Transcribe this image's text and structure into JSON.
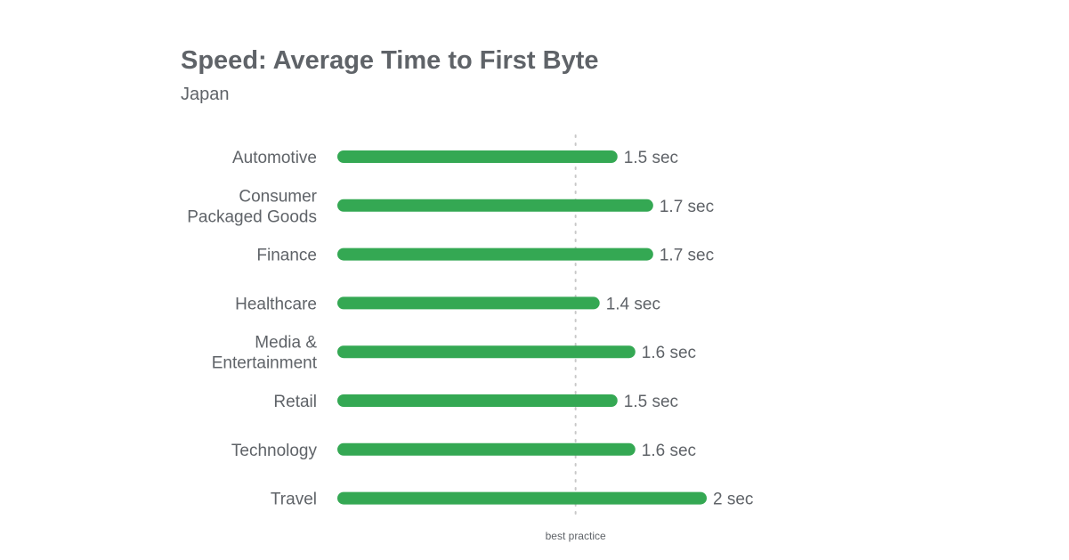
{
  "chart_data": {
    "type": "bar",
    "orientation": "horizontal",
    "title": "Speed: Average Time to First Byte",
    "subtitle": "Japan",
    "categories": [
      [
        "Automotive"
      ],
      [
        "Consumer",
        "Packaged Goods"
      ],
      [
        "Finance"
      ],
      [
        "Healthcare"
      ],
      [
        "Media &",
        "Entertainment"
      ],
      [
        "Retail"
      ],
      [
        "Technology"
      ],
      [
        "Travel"
      ]
    ],
    "values": [
      1.5,
      1.7,
      1.7,
      1.4,
      1.6,
      1.5,
      1.6,
      2.0
    ],
    "value_labels": [
      "1.5 sec",
      "1.7 sec",
      "1.7 sec",
      "1.4 sec",
      "1.6 sec",
      "1.5 sec",
      "1.6 sec",
      "2 sec"
    ],
    "unit": "sec",
    "xlim": [
      0,
      2
    ],
    "reference_line": {
      "value": 1.3,
      "label": "best practice"
    },
    "colors": {
      "bar": "#34a853",
      "text": "#5f6368",
      "reference": "#c8c8c8"
    }
  }
}
